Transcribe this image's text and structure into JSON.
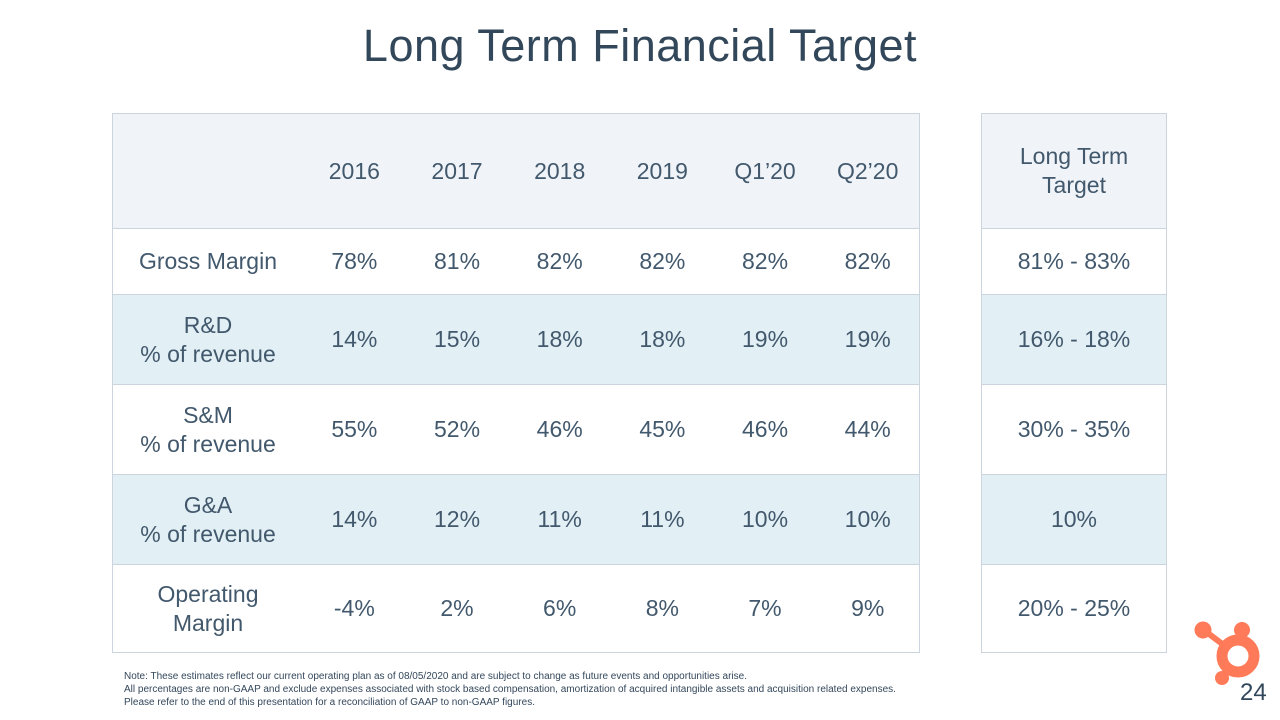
{
  "slide": {
    "title": "Long Term Financial Target",
    "page_number": "24"
  },
  "table": {
    "column_headers": [
      "2016",
      "2017",
      "2018",
      "2019",
      "Q1’20",
      "Q2’20"
    ],
    "rows": [
      {
        "label_lines": [
          "Gross Margin"
        ],
        "values": [
          "78%",
          "81%",
          "82%",
          "82%",
          "82%",
          "82%"
        ],
        "target": "81% - 83%"
      },
      {
        "label_lines": [
          "R&D",
          "% of revenue"
        ],
        "values": [
          "14%",
          "15%",
          "18%",
          "18%",
          "19%",
          "19%"
        ],
        "target": "16% - 18%"
      },
      {
        "label_lines": [
          "S&M",
          "% of revenue"
        ],
        "values": [
          "55%",
          "52%",
          "46%",
          "45%",
          "46%",
          "44%"
        ],
        "target": "30% - 35%"
      },
      {
        "label_lines": [
          "G&A",
          "% of revenue"
        ],
        "values": [
          "14%",
          "12%",
          "11%",
          "11%",
          "10%",
          "10%"
        ],
        "target": "10%"
      },
      {
        "label_lines": [
          "Operating",
          "Margin"
        ],
        "values": [
          "-4%",
          "2%",
          "6%",
          "8%",
          "7%",
          "9%"
        ],
        "target": "20% - 25%"
      }
    ],
    "target_header_lines": [
      "Long Term",
      "Target"
    ]
  },
  "notes": {
    "lines": [
      "Note: These estimates reflect our current operating plan as of 08/05/2020 and are subject to change as future events and opportunities arise.",
      "All percentages are non-GAAP and exclude expenses associated with stock based compensation, amortization of acquired intangible assets and acquisition related expenses.",
      "Please refer to the end of this presentation for a reconciliation of GAAP to non-GAAP figures."
    ]
  },
  "colors": {
    "accent_orange": "#ff7a59",
    "text_dark": "#33475b",
    "header_bg": "#f0f4f9",
    "stripe_bg": "#e2eff5",
    "border": "#ccd5de"
  }
}
